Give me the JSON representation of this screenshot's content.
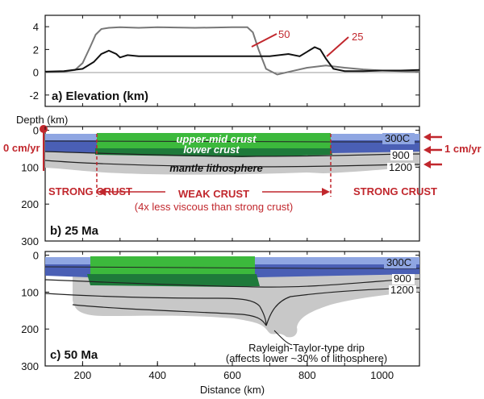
{
  "chart_data": [
    {
      "type": "line",
      "panel_label": "a) Elevation (km)",
      "xlim": [
        100,
        1100
      ],
      "ylim": [
        -3,
        5
      ],
      "y_ticks": [
        "-2",
        "0",
        "2",
        "4"
      ],
      "series": [
        {
          "name": "50",
          "color": "#777777",
          "x": [
            100,
            150,
            180,
            200,
            220,
            235,
            250,
            270,
            300,
            350,
            400,
            500,
            600,
            640,
            655,
            670,
            690,
            720,
            760,
            800,
            850,
            900,
            950,
            1000,
            1050,
            1100
          ],
          "y": [
            0.0,
            0.05,
            0.2,
            0.8,
            2.2,
            3.3,
            3.8,
            3.9,
            3.95,
            3.9,
            3.95,
            3.9,
            3.95,
            3.95,
            3.5,
            2.0,
            0.3,
            -0.2,
            0.1,
            0.4,
            0.6,
            0.4,
            0.25,
            0.15,
            0.1,
            0.05
          ]
        },
        {
          "name": "25",
          "color": "#111111",
          "x": [
            100,
            150,
            200,
            230,
            250,
            270,
            290,
            300,
            320,
            350,
            400,
            500,
            600,
            650,
            700,
            750,
            780,
            800,
            820,
            835,
            850,
            870,
            900,
            950,
            1000,
            1050,
            1100
          ],
          "y": [
            0.05,
            0.1,
            0.3,
            0.9,
            1.6,
            1.9,
            1.6,
            1.3,
            1.5,
            1.4,
            1.4,
            1.4,
            1.4,
            1.4,
            1.4,
            1.6,
            1.4,
            1.8,
            2.2,
            2.0,
            1.2,
            0.3,
            0.1,
            0.1,
            0.15,
            0.15,
            0.2
          ]
        }
      ],
      "labels": [
        "50",
        "25"
      ]
    },
    {
      "type": "area",
      "panel_label": "b) 25 Ma",
      "y_axis_title": "Depth (km)",
      "xlim": [
        100,
        1100
      ],
      "ylim": [
        300,
        -10
      ],
      "y_ticks": [
        "0",
        "100",
        "200",
        "300"
      ],
      "layers": [
        "upper-mid crust",
        "lower crust",
        "mantle lithosphere"
      ],
      "isotherms": [
        "300C",
        "900",
        "1200"
      ],
      "zones": {
        "left": "STRONG CRUST",
        "middle": "WEAK CRUST",
        "right": "STRONG CRUST",
        "middle_note": "(4x less viscous than strong crust)",
        "weak_range_km": [
          240,
          860
        ]
      },
      "velocities": {
        "left": "0 cm/yr",
        "right": "1 cm/yr"
      }
    },
    {
      "type": "area",
      "panel_label": "c) 50 Ma",
      "xlim": [
        100,
        1100
      ],
      "ylim": [
        300,
        -10
      ],
      "y_ticks": [
        "0",
        "100",
        "200",
        "300"
      ],
      "x_ticks": [
        "200",
        "400",
        "600",
        "800",
        "1000"
      ],
      "xlabel": "Distance (km)",
      "isotherms": [
        "300C",
        "900",
        "1200"
      ],
      "annotation": "Rayleigh-Taylor-type drip",
      "annotation_note": "(affects lower ~30% of lithosphere)"
    }
  ]
}
